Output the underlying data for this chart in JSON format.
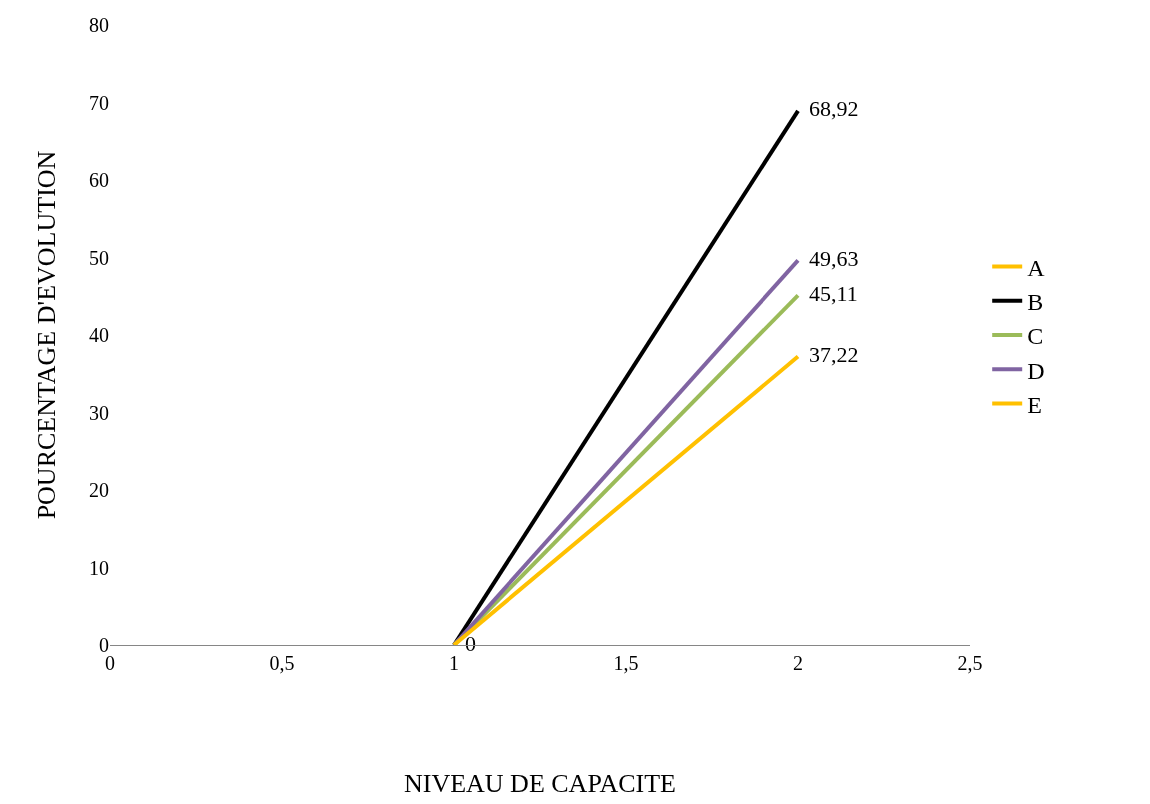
{
  "chart_data": {
    "type": "line",
    "xlabel": "NIVEAU DE CAPACITE",
    "ylabel": "POURCENTAGE D'EVOLUTION",
    "x": [
      1,
      2
    ],
    "series": [
      {
        "name": "A",
        "color": "#ffc000",
        "values": [
          null,
          null
        ]
      },
      {
        "name": "B",
        "color": "#000000",
        "values": [
          0,
          68.92
        ],
        "value_labels": [
          null,
          "68,92"
        ]
      },
      {
        "name": "C",
        "color": "#9bbb59",
        "values": [
          0,
          45.11
        ],
        "value_labels": [
          null,
          "45,11"
        ]
      },
      {
        "name": "D",
        "color": "#8064a2",
        "values": [
          0,
          49.63
        ],
        "value_labels": [
          null,
          "49,63"
        ]
      },
      {
        "name": "E",
        "color": "#ffc000",
        "values": [
          0,
          37.22
        ],
        "value_labels": [
          "0",
          "37,22"
        ]
      }
    ],
    "xlim": [
      0,
      2.5
    ],
    "xticks": [
      0,
      {
        "value": 0.5,
        "label": "0,5"
      },
      1,
      {
        "value": 1.5,
        "label": "1,5"
      },
      2,
      {
        "value": 2.5,
        "label": "2,5"
      }
    ],
    "ylim": [
      0,
      80
    ],
    "yticks": [
      0,
      10,
      20,
      30,
      40,
      50,
      60,
      70,
      80
    ],
    "legend": "right",
    "marker": "none",
    "line_style": "solid"
  }
}
